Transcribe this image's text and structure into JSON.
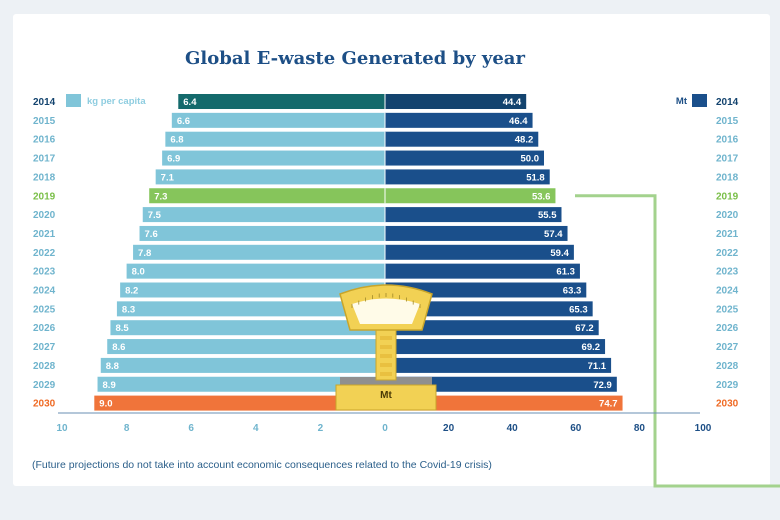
{
  "colors": {
    "left_bar": "#80c5d9",
    "left_bar_first": "#146a6c",
    "right_bar": "#1a4f8b",
    "right_bar_first": "#13436e",
    "highlight_2019": "#86c55b",
    "highlight_2030": "#f0743a",
    "scale_body": "#f2d154",
    "scale_outline": "#c9a52a",
    "connector": "#a3d28d"
  },
  "chart_data": {
    "type": "bar",
    "title": "Global E-waste Generated by year",
    "legend_left": "kg per capita",
    "legend_right": "Mt",
    "center_label": "Mt",
    "years": [
      "2014",
      "2015",
      "2016",
      "2017",
      "2018",
      "2019",
      "2020",
      "2021",
      "2022",
      "2023",
      "2024",
      "2025",
      "2026",
      "2027",
      "2028",
      "2029",
      "2030"
    ],
    "series": [
      {
        "name": "kg per capita",
        "axis": "left",
        "values": [
          6.4,
          6.6,
          6.8,
          6.9,
          7.1,
          7.3,
          7.5,
          7.6,
          7.8,
          8.0,
          8.2,
          8.3,
          8.5,
          8.6,
          8.8,
          8.9,
          9.0
        ]
      },
      {
        "name": "Mt",
        "axis": "right",
        "values": [
          44.4,
          46.4,
          48.2,
          50.0,
          51.8,
          53.6,
          55.5,
          57.4,
          59.4,
          61.3,
          63.3,
          65.3,
          67.2,
          69.2,
          71.1,
          72.9,
          74.7
        ]
      }
    ],
    "left_ticks": [
      "10",
      "8",
      "6",
      "4",
      "2",
      "0"
    ],
    "right_ticks": [
      "20",
      "40",
      "60",
      "80",
      "100"
    ],
    "left_range": [
      10,
      0
    ],
    "right_range": [
      0,
      100
    ],
    "highlight_current": "2019",
    "highlight_projection": "2030",
    "note": "(Future projections do not take into account economic consequences related to the Covid-19 crisis)"
  }
}
